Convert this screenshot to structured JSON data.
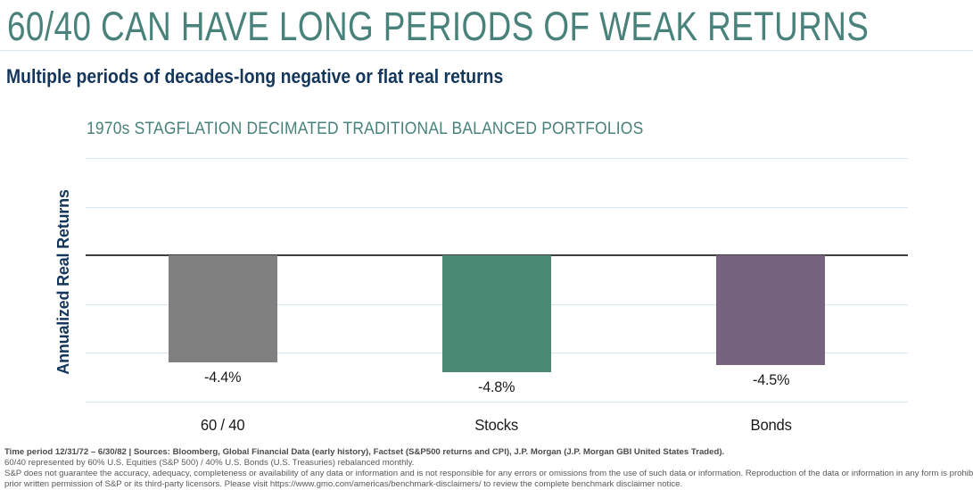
{
  "page": {
    "title": "60/40 CAN HAVE LONG PERIODS OF WEAK RETURNS",
    "subtitle": "Multiple periods of decades-long negative or flat real returns"
  },
  "chart_data": {
    "type": "bar",
    "title": "1970s STAGFLATION DECIMATED TRADITIONAL BALANCED PORTFOLIOS",
    "categories": [
      "60 / 40",
      "Stocks",
      "Bonds"
    ],
    "values": [
      -4.4,
      -4.8,
      -4.5
    ],
    "value_labels": [
      "-4.4%",
      "-4.8%",
      "-4.5%"
    ],
    "xlabel": "",
    "ylabel": "Annualized Real Returns",
    "ylim": [
      -6,
      4
    ],
    "gridline_step": 2,
    "grid": true,
    "legend": false,
    "bar_colors": [
      "#808080",
      "#4A8A74",
      "#756380"
    ]
  },
  "footer": {
    "line1": "Time period 12/31/72 – 6/30/82 | Sources: Bloomberg, Global Financial Data (early history), Factset (S&P500 returns and CPI), J.P. Morgan (J.P. Morgan GBI United States Traded).",
    "line2": "60/40 represented by 60% U.S. Equities (S&P 500) / 40% U.S. Bonds (U.S. Treasuries) rebalanced monthly.",
    "line3": "S&P does not guarantee the accuracy, adequacy, completeness or availability of any data or information and is not responsible for any errors or omissions from the use of such data or information. Reproduction of the data or information in any form is prohibited except with the",
    "line4": "prior written permission of S&P or its third-party licensors. Please visit https://www.gmo.com/americas/benchmark-disclaimers/ to review the complete benchmark disclaimer notice."
  },
  "colors": {
    "accent_teal": "#48827B",
    "navy": "#14365A",
    "gridline": "#D7E5EF",
    "zero_line": "#3E3E3E",
    "text_black": "#1A1A1A",
    "footer_gray": "#58595B"
  }
}
